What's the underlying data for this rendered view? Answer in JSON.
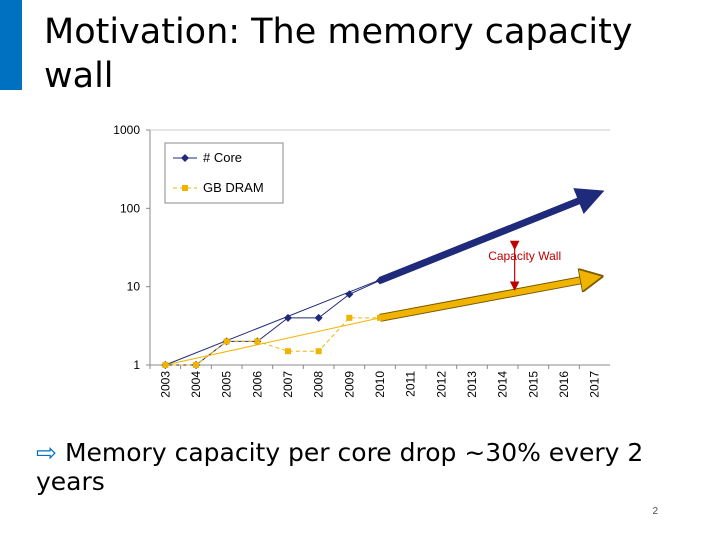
{
  "slide": {
    "title": "Motivation: The memory capacity wall",
    "bullet": "Memory capacity per core drop ~30% every 2 years",
    "bullet_icon": "hollow-right-arrow-icon",
    "page_number": "2",
    "accent_color": "#0070c0"
  },
  "chart_data": {
    "type": "line",
    "y_scale": "log",
    "ylim": [
      1,
      1000
    ],
    "y_ticks": [
      "1",
      "10",
      "100",
      "1000"
    ],
    "categories": [
      "2003",
      "2004",
      "2005",
      "2006",
      "2007",
      "2008",
      "2009",
      "2010",
      "2011",
      "2012",
      "2013",
      "2014",
      "2015",
      "2016",
      "2017"
    ],
    "legend_position": "top-left",
    "series": [
      {
        "name": "# Core",
        "color": "#1f2a7a",
        "marker": "diamond",
        "x": [
          "2003",
          "2004",
          "2005",
          "2006",
          "2007",
          "2008",
          "2009",
          "2010"
        ],
        "values": [
          1,
          1,
          2,
          2,
          4,
          4,
          8,
          12
        ],
        "trend": {
          "x": [
            "2003",
            "2017"
          ],
          "values": [
            1,
            150
          ]
        },
        "projection": {
          "x": [
            "2010",
            "2017"
          ],
          "values": [
            12,
            150
          ]
        }
      },
      {
        "name": "GB DRAM",
        "color": "#f0b400",
        "marker": "square",
        "x": [
          "2003",
          "2004",
          "2005",
          "2006",
          "2007",
          "2008",
          "2009",
          "2010"
        ],
        "values": [
          1,
          1,
          2,
          2,
          1.5,
          1.5,
          4,
          4
        ],
        "trend": {
          "x": [
            "2003",
            "2010"
          ],
          "values": [
            1,
            4
          ]
        },
        "projection": {
          "x": [
            "2010",
            "2017"
          ],
          "values": [
            4,
            13
          ]
        }
      }
    ],
    "annotation": {
      "text": "Capacity Wall",
      "x": "2014",
      "from": 40,
      "to": 8.5,
      "color": "#c00000"
    }
  }
}
